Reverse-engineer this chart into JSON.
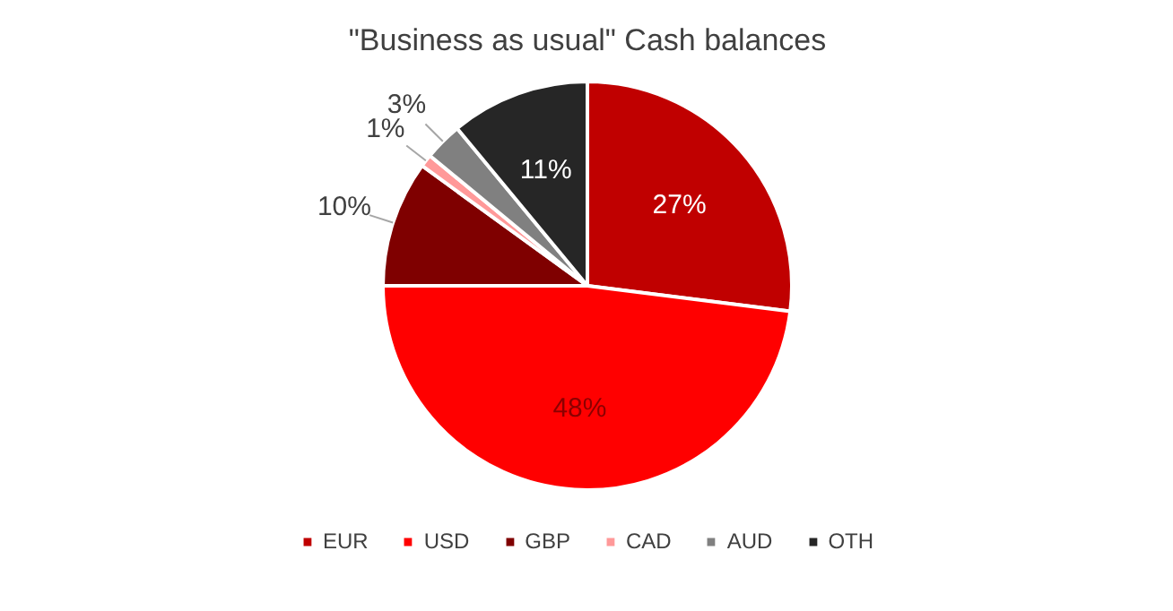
{
  "chart_data": {
    "type": "pie",
    "title": "\"Business as usual\" Cash balances",
    "categories": [
      "EUR",
      "USD",
      "GBP",
      "CAD",
      "AUD",
      "OTH"
    ],
    "values": [
      27,
      48,
      10,
      1,
      3,
      11
    ],
    "colors": [
      "#c00000",
      "#ff0000",
      "#7f0000",
      "#ff9999",
      "#808080",
      "#262626"
    ],
    "value_labels": [
      "27%",
      "48%",
      "10%",
      "1%",
      "3%",
      "11%"
    ],
    "legend": "bottom"
  }
}
